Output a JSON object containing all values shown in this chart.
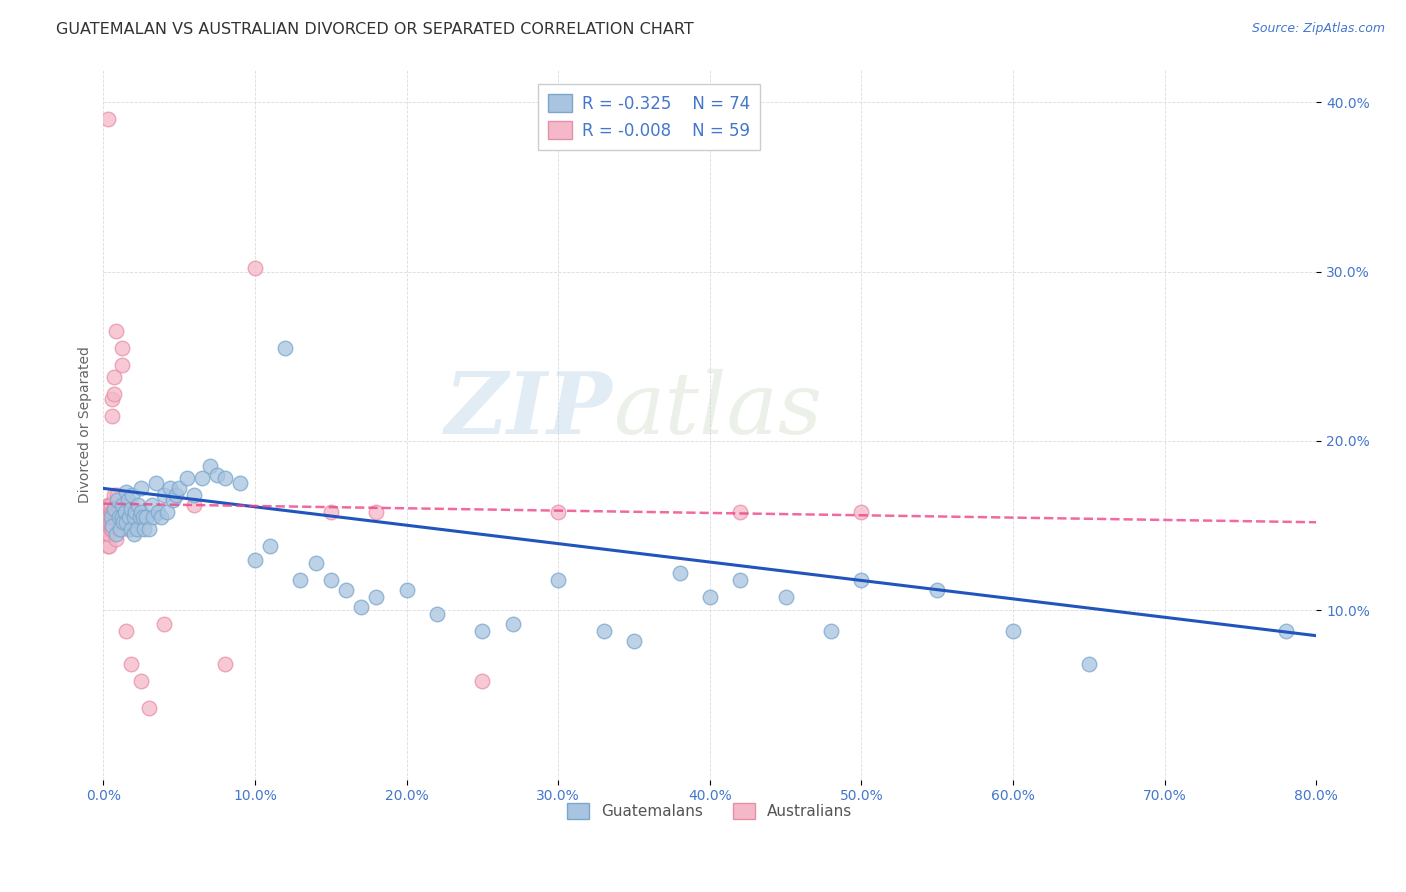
{
  "title": "GUATEMALAN VS AUSTRALIAN DIVORCED OR SEPARATED CORRELATION CHART",
  "source": "Source: ZipAtlas.com",
  "ylabel": "Divorced or Separated",
  "xlim": [
    0.0,
    0.8
  ],
  "ylim": [
    0.0,
    0.42
  ],
  "watermark_zip": "ZIP",
  "watermark_atlas": "atlas",
  "legend_R1": "R = -0.325",
  "legend_R2": "R = -0.008",
  "legend_N1": "N = 74",
  "legend_N2": "N = 59",
  "legend_label1": "Guatemalans",
  "legend_label2": "Australians",
  "color_blue_fill": "#A8C4E0",
  "color_blue_edge": "#7BA7CC",
  "color_pink_fill": "#F4B8C8",
  "color_pink_edge": "#E88FA8",
  "color_blue_line": "#2255BB",
  "color_pink_line": "#EE4488",
  "color_text": "#4477CC",
  "color_title": "#333333",
  "color_source": "#4477CC",
  "color_grid": "#CCCCCC",
  "color_ylabel": "#666666",
  "blue_points_x": [
    0.005,
    0.006,
    0.007,
    0.008,
    0.009,
    0.01,
    0.011,
    0.012,
    0.012,
    0.013,
    0.014,
    0.015,
    0.015,
    0.016,
    0.017,
    0.018,
    0.018,
    0.019,
    0.02,
    0.02,
    0.021,
    0.022,
    0.023,
    0.024,
    0.025,
    0.025,
    0.026,
    0.027,
    0.028,
    0.03,
    0.032,
    0.033,
    0.035,
    0.036,
    0.038,
    0.04,
    0.042,
    0.044,
    0.046,
    0.048,
    0.05,
    0.055,
    0.06,
    0.065,
    0.07,
    0.075,
    0.08,
    0.09,
    0.1,
    0.11,
    0.12,
    0.13,
    0.14,
    0.15,
    0.16,
    0.17,
    0.18,
    0.2,
    0.22,
    0.25,
    0.27,
    0.3,
    0.33,
    0.35,
    0.38,
    0.4,
    0.42,
    0.45,
    0.48,
    0.5,
    0.55,
    0.6,
    0.65,
    0.78
  ],
  "blue_points_y": [
    0.155,
    0.15,
    0.16,
    0.145,
    0.165,
    0.155,
    0.148,
    0.162,
    0.155,
    0.152,
    0.158,
    0.17,
    0.152,
    0.165,
    0.155,
    0.16,
    0.148,
    0.168,
    0.155,
    0.145,
    0.158,
    0.148,
    0.162,
    0.155,
    0.172,
    0.158,
    0.155,
    0.148,
    0.155,
    0.148,
    0.162,
    0.155,
    0.175,
    0.158,
    0.155,
    0.168,
    0.158,
    0.172,
    0.165,
    0.168,
    0.172,
    0.178,
    0.168,
    0.178,
    0.185,
    0.18,
    0.178,
    0.175,
    0.13,
    0.138,
    0.255,
    0.118,
    0.128,
    0.118,
    0.112,
    0.102,
    0.108,
    0.112,
    0.098,
    0.088,
    0.092,
    0.118,
    0.088,
    0.082,
    0.122,
    0.108,
    0.118,
    0.108,
    0.088,
    0.118,
    0.112,
    0.088,
    0.068,
    0.088
  ],
  "pink_points_x": [
    0.001,
    0.001,
    0.002,
    0.002,
    0.002,
    0.002,
    0.003,
    0.003,
    0.003,
    0.003,
    0.003,
    0.004,
    0.004,
    0.004,
    0.004,
    0.004,
    0.005,
    0.005,
    0.005,
    0.005,
    0.005,
    0.006,
    0.006,
    0.006,
    0.006,
    0.007,
    0.007,
    0.007,
    0.007,
    0.008,
    0.008,
    0.008,
    0.009,
    0.009,
    0.009,
    0.01,
    0.01,
    0.011,
    0.011,
    0.012,
    0.012,
    0.013,
    0.014,
    0.015,
    0.016,
    0.018,
    0.02,
    0.025,
    0.03,
    0.04,
    0.06,
    0.08,
    0.1,
    0.15,
    0.18,
    0.25,
    0.3,
    0.42,
    0.5
  ],
  "pink_points_y": [
    0.158,
    0.148,
    0.155,
    0.145,
    0.148,
    0.158,
    0.155,
    0.148,
    0.138,
    0.162,
    0.39,
    0.138,
    0.145,
    0.152,
    0.155,
    0.162,
    0.152,
    0.158,
    0.148,
    0.148,
    0.162,
    0.148,
    0.158,
    0.215,
    0.225,
    0.158,
    0.168,
    0.228,
    0.238,
    0.142,
    0.158,
    0.265,
    0.158,
    0.168,
    0.158,
    0.148,
    0.158,
    0.148,
    0.158,
    0.245,
    0.255,
    0.158,
    0.158,
    0.088,
    0.148,
    0.068,
    0.158,
    0.058,
    0.042,
    0.092,
    0.162,
    0.068,
    0.302,
    0.158,
    0.158,
    0.058,
    0.158,
    0.158,
    0.158
  ],
  "blue_regression": {
    "x_start": 0.0,
    "x_end": 0.8,
    "y_start": 0.172,
    "y_end": 0.085
  },
  "pink_regression": {
    "x_start": 0.0,
    "x_end": 0.8,
    "y_start": 0.163,
    "y_end": 0.152
  },
  "background_color": "#FFFFFF"
}
